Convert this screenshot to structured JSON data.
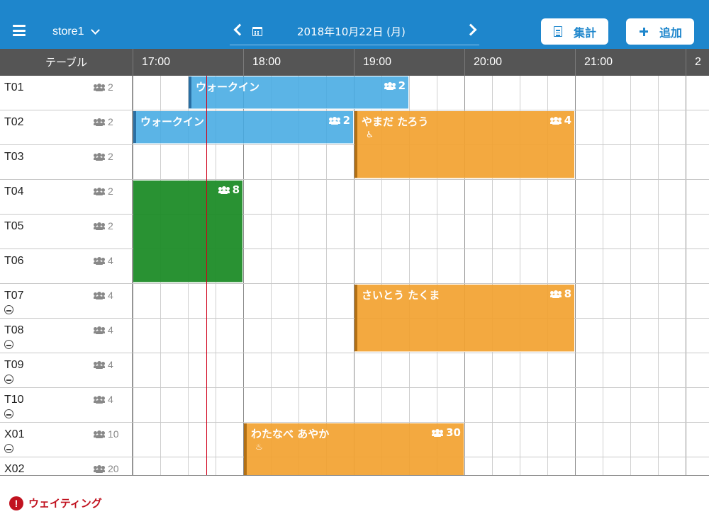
{
  "header": {
    "store_label": "store1",
    "date_label": "2018年10月22日 (月)",
    "summary_button": "集計",
    "add_button": "追加"
  },
  "timeline": {
    "table_column_header": "テーブル",
    "hours": [
      "17:00",
      "18:00",
      "19:00",
      "20:00",
      "21:00",
      "2"
    ]
  },
  "tables": [
    {
      "name": "T01",
      "seats": "2",
      "smoking": false
    },
    {
      "name": "T02",
      "seats": "2",
      "smoking": false
    },
    {
      "name": "T03",
      "seats": "2",
      "smoking": false
    },
    {
      "name": "T04",
      "seats": "2",
      "smoking": false
    },
    {
      "name": "T05",
      "seats": "2",
      "smoking": false
    },
    {
      "name": "T06",
      "seats": "4",
      "smoking": false
    },
    {
      "name": "T07",
      "seats": "4",
      "smoking": true
    },
    {
      "name": "T08",
      "seats": "4",
      "smoking": true
    },
    {
      "name": "T09",
      "seats": "4",
      "smoking": true
    },
    {
      "name": "T10",
      "seats": "4",
      "smoking": true
    },
    {
      "name": "X01",
      "seats": "10",
      "smoking": true
    },
    {
      "name": "X02",
      "seats": "20",
      "smoking": false
    }
  ],
  "reservations": [
    {
      "label": "ウォークイン",
      "count": "2",
      "kind": "walkin",
      "start": "17:30",
      "end": "19:30",
      "table_first": 0,
      "table_last": 0,
      "icon": ""
    },
    {
      "label": "ウォークイン",
      "count": "2",
      "kind": "walkin",
      "start": "17:00",
      "end": "19:00",
      "table_first": 1,
      "table_last": 1,
      "icon": ""
    },
    {
      "label": "やまだ たろう",
      "count": "4",
      "kind": "reserved",
      "start": "19:00",
      "end": "21:00",
      "table_first": 1,
      "table_last": 2,
      "icon": "♿"
    },
    {
      "label": "",
      "count": "8",
      "kind": "seated",
      "start": "17:00",
      "end": "18:00",
      "table_first": 3,
      "table_last": 5,
      "icon": ""
    },
    {
      "label": "さいとう たくま",
      "count": "8",
      "kind": "reserved",
      "start": "19:00",
      "end": "21:00",
      "table_first": 6,
      "table_last": 7,
      "icon": ""
    },
    {
      "label": "わたなべ あやか",
      "count": "30",
      "kind": "reserved",
      "start": "18:00",
      "end": "20:00",
      "table_first": 10,
      "table_last": 11,
      "icon": "♨"
    }
  ],
  "colors": {
    "accent": "#1e86cc",
    "walkin": "#44aae2",
    "reserved": "#f2a230",
    "seated": "#1e8c28",
    "now_line": "#d0021b",
    "warning": "#c1121f"
  },
  "footer": {
    "waiting_label": "ウェイティング"
  }
}
